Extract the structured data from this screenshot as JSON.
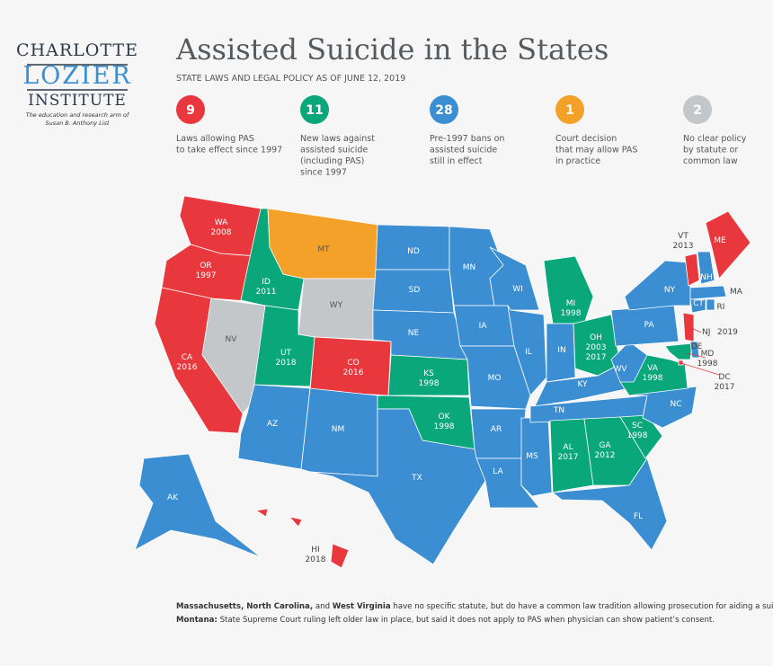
{
  "logo": {
    "line1": "CHARLOTTE",
    "line2": "LOZIER",
    "line3": "INSTITUTE",
    "tagline": [
      "The education and research arm of",
      "Susan B. Anthony List"
    ]
  },
  "header": {
    "title": "Assisted Suicide in the States",
    "subtitle": "STATE LAWS AND LEGAL POLICY AS OF JUNE 12, 2019"
  },
  "legend": [
    {
      "count": 9,
      "label": [
        "Laws allowing PAS",
        "to take effect since 1997"
      ],
      "color": "#e8383d"
    },
    {
      "count": 11,
      "label": [
        "New laws against",
        "assisted suicide",
        "(including PAS)",
        "since 1997"
      ],
      "color": "#0aa77b"
    },
    {
      "count": 28,
      "label": [
        "Pre-1997 bans on",
        "assisted suicide",
        "still in effect"
      ],
      "color": "#3b8ed1"
    },
    {
      "count": 1,
      "label": [
        "Court decision",
        "that may allow PAS",
        "in practice"
      ],
      "color": "#f4a12a"
    },
    {
      "count": 2,
      "label": [
        "No clear policy",
        "by statute or",
        "common law"
      ],
      "color": "#c4c7c9"
    }
  ],
  "states": [
    {
      "abbr": "WA",
      "years": [
        "2008"
      ],
      "category": 0
    },
    {
      "abbr": "OR",
      "years": [
        "1997"
      ],
      "category": 0
    },
    {
      "abbr": "CA",
      "years": [
        "2016"
      ],
      "category": 0
    },
    {
      "abbr": "NV",
      "category": 4
    },
    {
      "abbr": "ID",
      "years": [
        "2011"
      ],
      "category": 1
    },
    {
      "abbr": "MT",
      "category": 3
    },
    {
      "abbr": "WY",
      "category": 4
    },
    {
      "abbr": "UT",
      "years": [
        "2018"
      ],
      "category": 1
    },
    {
      "abbr": "CO",
      "years": [
        "2016"
      ],
      "category": 0
    },
    {
      "abbr": "AZ",
      "category": 2
    },
    {
      "abbr": "NM",
      "category": 2
    },
    {
      "abbr": "ND",
      "category": 2
    },
    {
      "abbr": "SD",
      "category": 2
    },
    {
      "abbr": "NE",
      "category": 2
    },
    {
      "abbr": "KS",
      "years": [
        "1998"
      ],
      "category": 1
    },
    {
      "abbr": "OK",
      "years": [
        "1998"
      ],
      "category": 1
    },
    {
      "abbr": "TX",
      "category": 2
    },
    {
      "abbr": "MN",
      "category": 2
    },
    {
      "abbr": "IA",
      "category": 2
    },
    {
      "abbr": "MO",
      "category": 2
    },
    {
      "abbr": "AR",
      "category": 2
    },
    {
      "abbr": "LA",
      "category": 2
    },
    {
      "abbr": "WI",
      "category": 2
    },
    {
      "abbr": "IL",
      "category": 2
    },
    {
      "abbr": "MS",
      "category": 2
    },
    {
      "abbr": "MI",
      "years": [
        "1998"
      ],
      "category": 1
    },
    {
      "abbr": "IN",
      "category": 2
    },
    {
      "abbr": "OH",
      "years": [
        "2003",
        "2017"
      ],
      "category": 1
    },
    {
      "abbr": "KY",
      "category": 2
    },
    {
      "abbr": "TN",
      "category": 2
    },
    {
      "abbr": "AL",
      "years": [
        "2017"
      ],
      "category": 1
    },
    {
      "abbr": "GA",
      "years": [
        "2012"
      ],
      "category": 1
    },
    {
      "abbr": "FL",
      "category": 2
    },
    {
      "abbr": "SC",
      "years": [
        "1998"
      ],
      "category": 1
    },
    {
      "abbr": "NC",
      "category": 2
    },
    {
      "abbr": "VA",
      "years": [
        "1998"
      ],
      "category": 1
    },
    {
      "abbr": "WV",
      "category": 2
    },
    {
      "abbr": "PA",
      "category": 2
    },
    {
      "abbr": "NY",
      "category": 2
    },
    {
      "abbr": "MD",
      "years": [
        "1998"
      ],
      "category": 1
    },
    {
      "abbr": "DE",
      "category": 2
    },
    {
      "abbr": "NJ",
      "years": [
        "2019"
      ],
      "category": 0
    },
    {
      "abbr": "VT",
      "years": [
        "2013"
      ],
      "category": 0
    },
    {
      "abbr": "NH",
      "category": 2
    },
    {
      "abbr": "ME",
      "category": 0
    },
    {
      "abbr": "MA",
      "category": 2
    },
    {
      "abbr": "CT",
      "category": 2
    },
    {
      "abbr": "RI",
      "category": 2
    },
    {
      "abbr": "DC",
      "years": [
        "2017"
      ],
      "category": 0
    },
    {
      "abbr": "AK",
      "category": 2
    },
    {
      "abbr": "HI",
      "years": [
        "2018"
      ],
      "category": 0
    }
  ],
  "footnotes": [
    [
      {
        "text": "Massachusetts, North Carolina,",
        "bold": true
      },
      {
        "text": " and ",
        "bold": false
      },
      {
        "text": "West Virginia",
        "bold": true
      },
      {
        "text": " have no specific statute, but do have a common law tradition allowing prosecution for aiding a suicide.",
        "bold": false
      }
    ],
    [
      {
        "text": "Montana:",
        "bold": true
      },
      {
        "text": " State Supreme Court ruling left older law in place, but said it does not apply to PAS when physician can show patient’s consent.",
        "bold": false
      }
    ]
  ]
}
